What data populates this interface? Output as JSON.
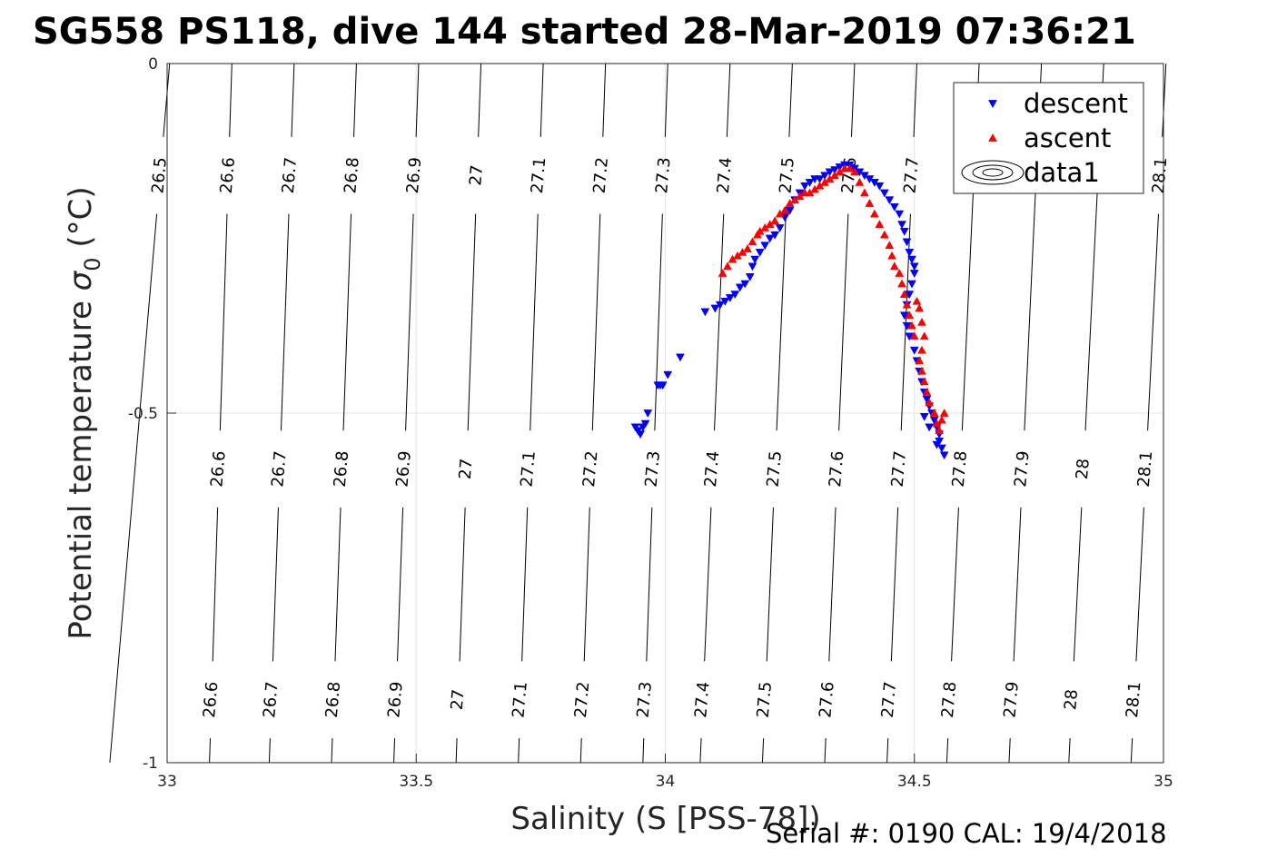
{
  "chart_data": {
    "type": "scatter",
    "title": "SG558 PS118, dive 144 started 28-Mar-2019 07:36:21",
    "xlabel": "Salinity (S [PSS-78])",
    "ylabel_main": "Potential temperature ",
    "ylabel_symbol": "σ",
    "ylabel_sub": "0",
    "ylabel_unit": " (°C)",
    "xlim": [
      33,
      35
    ],
    "ylim": [
      -1,
      0
    ],
    "xticks": [
      33,
      33.5,
      34,
      34.5,
      35
    ],
    "xtick_labels": [
      "33",
      "33.5",
      "34",
      "34.5",
      "35"
    ],
    "yticks": [
      0,
      -0.5,
      -1
    ],
    "ytick_labels": [
      "0",
      "-0.5",
      "-1"
    ],
    "grid": true,
    "legend_position": "top-right",
    "legend": [
      {
        "name": "descent",
        "marker": "triangle-down",
        "color": "#0000ff"
      },
      {
        "name": "ascent",
        "marker": "triangle-up",
        "color": "#ff0000"
      },
      {
        "name": "data1",
        "marker": "contour",
        "color": "#000000"
      }
    ],
    "contours": {
      "labels": [
        "26.5",
        "26.6",
        "26.7",
        "26.8",
        "26.9",
        "27",
        "27.1",
        "27.2",
        "27.3",
        "27.4",
        "27.5",
        "27.6",
        "27.7",
        "27.8",
        "27.9",
        "28",
        "28.1"
      ],
      "s_at_top": [
        33.005,
        33.13,
        33.255,
        33.38,
        33.505,
        33.63,
        33.755,
        33.88,
        34.005,
        34.13,
        34.255,
        34.38,
        34.505,
        34.63,
        34.755,
        34.88,
        35.005
      ],
      "s_at_bottom": [
        32.885,
        33.085,
        33.205,
        33.33,
        33.455,
        33.58,
        33.705,
        33.83,
        33.955,
        34.07,
        34.195,
        34.32,
        34.445,
        34.565,
        34.69,
        34.81,
        34.935
      ],
      "label_rows": [
        {
          "y": -0.16,
          "labels": [
            "26.5",
            "26.6",
            "26.7",
            "26.8",
            "26.9",
            "27",
            "27.1",
            "27.2",
            "27.3",
            "27.4",
            "27.5",
            "27.6",
            "27.7",
            "28.1"
          ]
        },
        {
          "y": -0.58,
          "labels": [
            "26.6",
            "26.7",
            "26.8",
            "26.9",
            "27",
            "27.1",
            "27.2",
            "27.3",
            "27.4",
            "27.5",
            "27.6",
            "27.7",
            "27.8",
            "27.9",
            "28",
            "28.1"
          ]
        },
        {
          "y": -0.91,
          "labels": [
            "26.6",
            "26.7",
            "26.8",
            "26.9",
            "27",
            "27.1",
            "27.2",
            "27.3",
            "27.4",
            "27.5",
            "27.6",
            "27.7",
            "27.8",
            "27.9",
            "28",
            "28.1"
          ]
        }
      ]
    },
    "series": [
      {
        "name": "descent",
        "marker": "triangle-down",
        "color": "#0000ff",
        "points": [
          [
            33.94,
            -0.52
          ],
          [
            33.945,
            -0.525
          ],
          [
            33.95,
            -0.53
          ],
          [
            33.955,
            -0.52
          ],
          [
            33.96,
            -0.515
          ],
          [
            33.965,
            -0.5
          ],
          [
            33.985,
            -0.46
          ],
          [
            33.99,
            -0.46
          ],
          [
            33.995,
            -0.46
          ],
          [
            34.005,
            -0.445
          ],
          [
            34.03,
            -0.42
          ],
          [
            34.08,
            -0.355
          ],
          [
            34.1,
            -0.35
          ],
          [
            34.11,
            -0.345
          ],
          [
            34.12,
            -0.34
          ],
          [
            34.13,
            -0.335
          ],
          [
            34.14,
            -0.33
          ],
          [
            34.15,
            -0.32
          ],
          [
            34.16,
            -0.315
          ],
          [
            34.17,
            -0.305
          ],
          [
            34.175,
            -0.29
          ],
          [
            34.18,
            -0.28
          ],
          [
            34.19,
            -0.27
          ],
          [
            34.2,
            -0.26
          ],
          [
            34.21,
            -0.25
          ],
          [
            34.22,
            -0.245
          ],
          [
            34.23,
            -0.235
          ],
          [
            34.24,
            -0.22
          ],
          [
            34.25,
            -0.21
          ],
          [
            34.26,
            -0.195
          ],
          [
            34.27,
            -0.185
          ],
          [
            34.28,
            -0.175
          ],
          [
            34.29,
            -0.17
          ],
          [
            34.3,
            -0.165
          ],
          [
            34.31,
            -0.165
          ],
          [
            34.32,
            -0.16
          ],
          [
            34.33,
            -0.155
          ],
          [
            34.34,
            -0.152
          ],
          [
            34.35,
            -0.148
          ],
          [
            34.36,
            -0.145
          ],
          [
            34.37,
            -0.145
          ],
          [
            34.38,
            -0.15
          ],
          [
            34.39,
            -0.155
          ],
          [
            34.4,
            -0.16
          ],
          [
            34.41,
            -0.165
          ],
          [
            34.42,
            -0.17
          ],
          [
            34.43,
            -0.175
          ],
          [
            34.44,
            -0.185
          ],
          [
            34.45,
            -0.195
          ],
          [
            34.46,
            -0.205
          ],
          [
            34.47,
            -0.215
          ],
          [
            34.475,
            -0.23
          ],
          [
            34.48,
            -0.24
          ],
          [
            34.485,
            -0.255
          ],
          [
            34.49,
            -0.27
          ],
          [
            34.495,
            -0.28
          ],
          [
            34.5,
            -0.29
          ],
          [
            34.5,
            -0.3
          ],
          [
            34.495,
            -0.315
          ],
          [
            34.49,
            -0.33
          ],
          [
            34.485,
            -0.345
          ],
          [
            34.48,
            -0.36
          ],
          [
            34.485,
            -0.375
          ],
          [
            34.49,
            -0.39
          ],
          [
            34.5,
            -0.41
          ],
          [
            34.505,
            -0.425
          ],
          [
            34.51,
            -0.44
          ],
          [
            34.515,
            -0.455
          ],
          [
            34.52,
            -0.47
          ],
          [
            34.525,
            -0.48
          ],
          [
            34.53,
            -0.49
          ],
          [
            34.535,
            -0.5
          ],
          [
            34.54,
            -0.51
          ],
          [
            34.545,
            -0.52
          ],
          [
            34.55,
            -0.53
          ],
          [
            34.55,
            -0.54
          ],
          [
            34.555,
            -0.55
          ],
          [
            34.56,
            -0.56
          ],
          [
            34.545,
            -0.545
          ],
          [
            34.53,
            -0.52
          ],
          [
            34.52,
            -0.505
          ]
        ]
      },
      {
        "name": "ascent",
        "marker": "triangle-up",
        "color": "#ff0000",
        "points": [
          [
            34.115,
            -0.3
          ],
          [
            34.125,
            -0.29
          ],
          [
            34.135,
            -0.28
          ],
          [
            34.145,
            -0.275
          ],
          [
            34.155,
            -0.27
          ],
          [
            34.165,
            -0.265
          ],
          [
            34.175,
            -0.255
          ],
          [
            34.185,
            -0.245
          ],
          [
            34.19,
            -0.24
          ],
          [
            34.2,
            -0.235
          ],
          [
            34.21,
            -0.23
          ],
          [
            34.22,
            -0.225
          ],
          [
            34.23,
            -0.215
          ],
          [
            34.24,
            -0.21
          ],
          [
            34.25,
            -0.2
          ],
          [
            34.26,
            -0.195
          ],
          [
            34.27,
            -0.19
          ],
          [
            34.28,
            -0.185
          ],
          [
            34.29,
            -0.185
          ],
          [
            34.3,
            -0.18
          ],
          [
            34.31,
            -0.175
          ],
          [
            34.32,
            -0.17
          ],
          [
            34.33,
            -0.165
          ],
          [
            34.34,
            -0.16
          ],
          [
            34.35,
            -0.155
          ],
          [
            34.36,
            -0.15
          ],
          [
            34.37,
            -0.15
          ],
          [
            34.38,
            -0.155
          ],
          [
            34.39,
            -0.17
          ],
          [
            34.4,
            -0.185
          ],
          [
            34.41,
            -0.2
          ],
          [
            34.42,
            -0.215
          ],
          [
            34.43,
            -0.23
          ],
          [
            34.44,
            -0.245
          ],
          [
            34.45,
            -0.26
          ],
          [
            34.455,
            -0.275
          ],
          [
            34.46,
            -0.29
          ],
          [
            34.47,
            -0.3
          ],
          [
            34.475,
            -0.315
          ],
          [
            34.48,
            -0.33
          ],
          [
            34.485,
            -0.345
          ],
          [
            34.49,
            -0.36
          ],
          [
            34.495,
            -0.375
          ],
          [
            34.5,
            -0.39
          ],
          [
            34.505,
            -0.34
          ],
          [
            34.51,
            -0.35
          ],
          [
            34.515,
            -0.37
          ],
          [
            34.52,
            -0.39
          ],
          [
            34.515,
            -0.41
          ],
          [
            34.51,
            -0.425
          ],
          [
            34.515,
            -0.44
          ],
          [
            34.52,
            -0.455
          ],
          [
            34.525,
            -0.47
          ],
          [
            34.53,
            -0.485
          ],
          [
            34.54,
            -0.5
          ],
          [
            34.545,
            -0.515
          ],
          [
            34.55,
            -0.525
          ],
          [
            34.555,
            -0.51
          ],
          [
            34.56,
            -0.5
          ]
        ]
      }
    ],
    "footer": "Serial #: 0190  CAL: 19/4/2018"
  }
}
